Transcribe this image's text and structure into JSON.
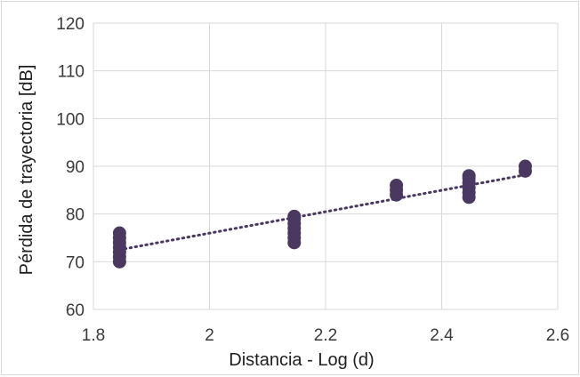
{
  "chart_data": {
    "type": "scatter",
    "title": "",
    "xlabel": "Distancia - Log (d)",
    "ylabel": "Pérdida de trayectoria [dB]",
    "xlim": [
      1.8,
      2.6
    ],
    "ylim": [
      60,
      120
    ],
    "x_ticks": [
      "1.8",
      "2",
      "2.2",
      "2.4",
      "2.6"
    ],
    "y_ticks": [
      "60",
      "70",
      "80",
      "90",
      "100",
      "110",
      "120"
    ],
    "grid": true,
    "legend": "none",
    "marker_color": "#4b3860",
    "series": [
      {
        "points": [
          {
            "x": 1.845,
            "y": 70.0
          },
          {
            "x": 1.845,
            "y": 71.0
          },
          {
            "x": 1.845,
            "y": 72.0
          },
          {
            "x": 1.845,
            "y": 73.0
          },
          {
            "x": 1.845,
            "y": 74.0
          },
          {
            "x": 1.845,
            "y": 75.0
          },
          {
            "x": 1.845,
            "y": 76.0
          },
          {
            "x": 2.146,
            "y": 74.0
          },
          {
            "x": 2.146,
            "y": 75.0
          },
          {
            "x": 2.146,
            "y": 76.0
          },
          {
            "x": 2.146,
            "y": 77.0
          },
          {
            "x": 2.146,
            "y": 78.0
          },
          {
            "x": 2.146,
            "y": 79.0
          },
          {
            "x": 2.146,
            "y": 79.5
          },
          {
            "x": 2.322,
            "y": 84.0
          },
          {
            "x": 2.322,
            "y": 85.0
          },
          {
            "x": 2.322,
            "y": 86.0
          },
          {
            "x": 2.447,
            "y": 83.5
          },
          {
            "x": 2.447,
            "y": 84.5
          },
          {
            "x": 2.447,
            "y": 85.5
          },
          {
            "x": 2.447,
            "y": 86.5
          },
          {
            "x": 2.447,
            "y": 87.5
          },
          {
            "x": 2.447,
            "y": 88.0
          },
          {
            "x": 2.544,
            "y": 89.0
          },
          {
            "x": 2.544,
            "y": 90.0
          }
        ]
      }
    ],
    "trendline": {
      "style": "dotted",
      "color": "#4b3860",
      "x": [
        1.845,
        2.544
      ],
      "y": [
        72.5,
        88.2
      ]
    }
  }
}
